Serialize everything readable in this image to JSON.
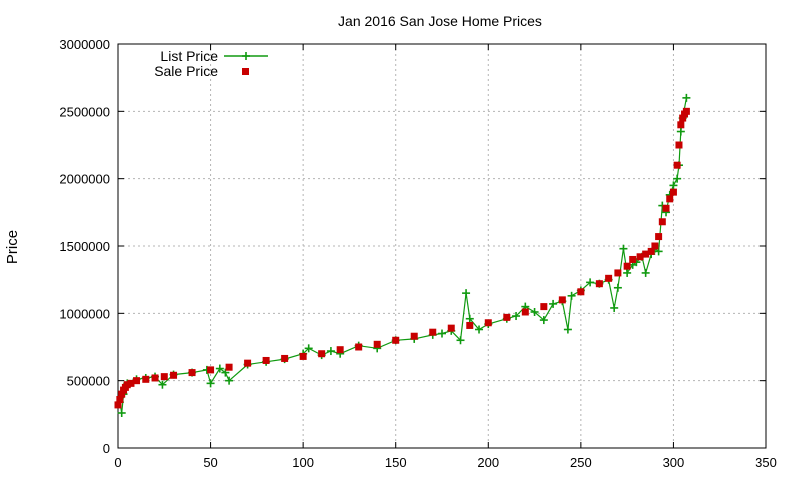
{
  "chart_data": {
    "type": "scatter",
    "title": "Jan 2016 San Jose Home Prices",
    "xlabel": "",
    "ylabel": "Price",
    "xlim": [
      0,
      350
    ],
    "ylim": [
      0,
      3000000
    ],
    "x_ticks": [
      "0",
      "50",
      "100",
      "150",
      "200",
      "250",
      "300",
      "350"
    ],
    "y_ticks": [
      "0",
      "500000",
      "1000000",
      "1500000",
      "2000000",
      "2500000",
      "3000000"
    ],
    "grid": true,
    "legend_position": "top-left",
    "series": [
      {
        "name": "List Price",
        "color": "#109a10",
        "marker": "plus",
        "style": "linespoints",
        "x": [
          1,
          2,
          3,
          5,
          10,
          15,
          20,
          24,
          30,
          40,
          48,
          50,
          55,
          58,
          60,
          70,
          80,
          90,
          100,
          103,
          110,
          115,
          120,
          130,
          140,
          150,
          160,
          170,
          175,
          180,
          185,
          188,
          190,
          195,
          200,
          210,
          215,
          220,
          225,
          230,
          235,
          240,
          243,
          245,
          250,
          255,
          260,
          265,
          268,
          270,
          273,
          275,
          278,
          280,
          283,
          285,
          288,
          290,
          292,
          294,
          296,
          298,
          300,
          302,
          303,
          304,
          305,
          307
        ],
        "values": [
          340000,
          260000,
          400000,
          480000,
          510000,
          520000,
          530000,
          470000,
          545000,
          560000,
          580000,
          480000,
          590000,
          560000,
          500000,
          620000,
          640000,
          660000,
          700000,
          740000,
          690000,
          720000,
          700000,
          760000,
          740000,
          800000,
          810000,
          840000,
          850000,
          870000,
          800000,
          1150000,
          960000,
          880000,
          920000,
          960000,
          980000,
          1050000,
          1010000,
          950000,
          1070000,
          1090000,
          880000,
          1130000,
          1170000,
          1230000,
          1220000,
          1250000,
          1040000,
          1190000,
          1480000,
          1300000,
          1360000,
          1380000,
          1420000,
          1300000,
          1440000,
          1480000,
          1460000,
          1800000,
          1750000,
          1880000,
          1950000,
          2000000,
          2100000,
          2350000,
          2450000,
          2600000
        ]
      },
      {
        "name": "Sale Price",
        "color": "#c80000",
        "marker": "square",
        "style": "points",
        "x": [
          0,
          1,
          2,
          3,
          4,
          5,
          7,
          10,
          15,
          20,
          25,
          30,
          40,
          50,
          60,
          70,
          80,
          90,
          100,
          110,
          120,
          130,
          140,
          150,
          160,
          170,
          180,
          190,
          200,
          210,
          220,
          230,
          240,
          250,
          260,
          265,
          270,
          275,
          278,
          282,
          285,
          288,
          290,
          292,
          294,
          296,
          298,
          300,
          302,
          303,
          304,
          305,
          306,
          307
        ],
        "values": [
          320000,
          360000,
          400000,
          430000,
          450000,
          470000,
          480000,
          500000,
          510000,
          520000,
          530000,
          540000,
          560000,
          580000,
          600000,
          630000,
          650000,
          665000,
          680000,
          700000,
          730000,
          750000,
          770000,
          800000,
          830000,
          860000,
          890000,
          910000,
          930000,
          970000,
          1010000,
          1050000,
          1100000,
          1160000,
          1220000,
          1260000,
          1300000,
          1350000,
          1400000,
          1420000,
          1440000,
          1460000,
          1500000,
          1570000,
          1680000,
          1780000,
          1850000,
          1900000,
          2100000,
          2250000,
          2400000,
          2450000,
          2480000,
          2500000
        ]
      }
    ]
  }
}
